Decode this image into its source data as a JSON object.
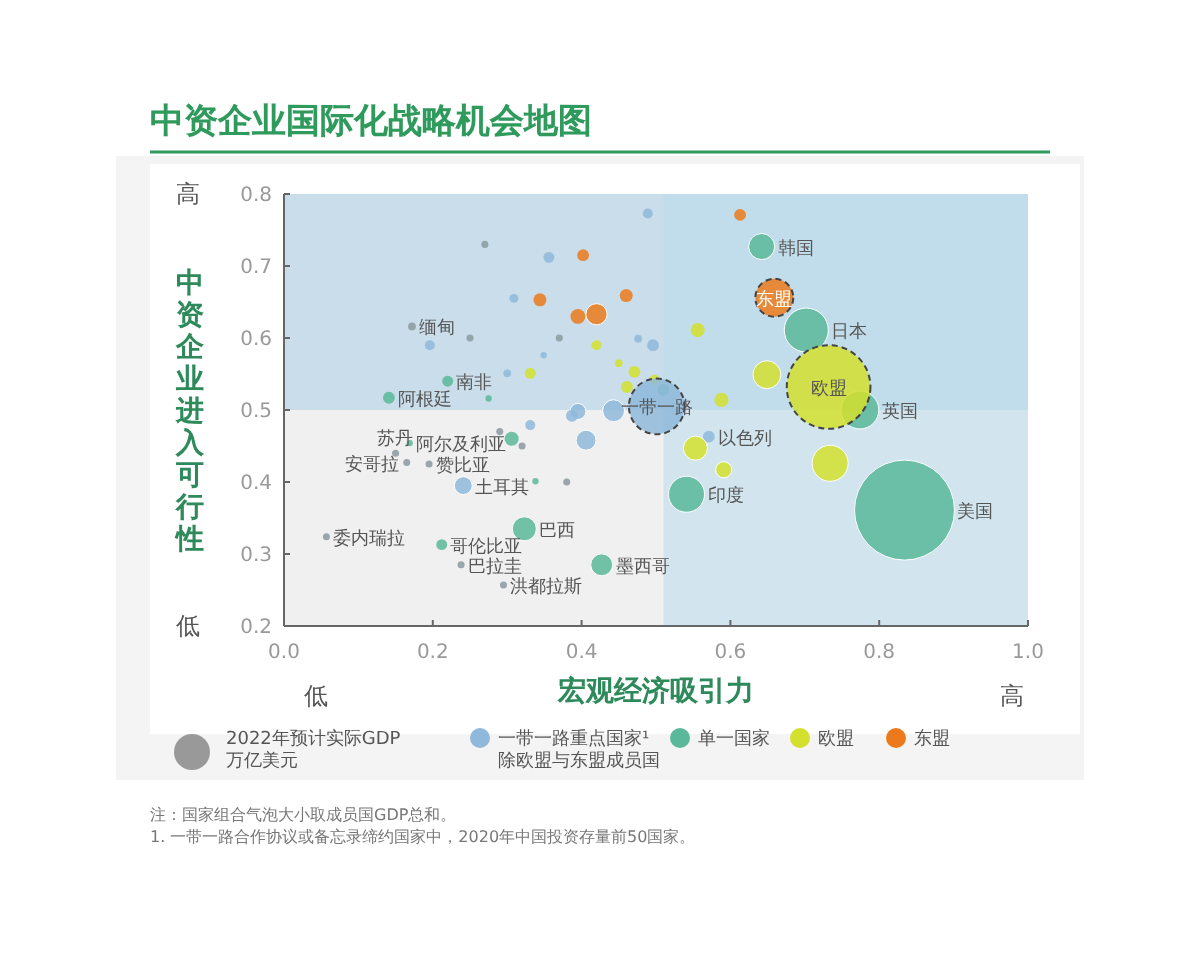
{
  "chart_data": {
    "type": "bubble",
    "title": "中资企业国际化战略机会地图",
    "xlabel": "宏观经济吸引力",
    "ylabel": "中资企业进入可行性",
    "legend_title": "2022年预计实际GDP 万亿美元",
    "legend": "bottom",
    "marker": "circle",
    "grid": false,
    "xlim": [
      0,
      1
    ],
    "xticks": [
      {
        "value": 0,
        "label": "0.0"
      },
      0.2,
      0.4,
      0.6,
      0.8,
      {
        "value": 1,
        "label": "1.0"
      }
    ],
    "ylim": [
      0.2,
      0.8
    ],
    "yticks": [
      0.2,
      0.3,
      0.4,
      0.5,
      0.6,
      0.7,
      0.8
    ],
    "bands": [
      {
        "axis": "y",
        "from": 0.5,
        "to": 0.8,
        "color": "#a9cde6"
      },
      {
        "axis": "x",
        "from": 0.51,
        "to": 1,
        "color": "#b9dcec"
      }
    ],
    "series": [
      {
        "name": "一带一路重点国家¹ 除欧盟与东盟成员国",
        "color": "#8fb8da",
        "x": [
          0.489,
          0.356,
          0.309,
          0.196,
          0.349,
          0.3,
          0.496,
          0.476,
          0.443,
          0.395,
          0.387,
          0.406,
          0.331,
          0.241,
          0.571
        ],
        "values": [
          0.773,
          0.712,
          0.655,
          0.59,
          0.576,
          0.551,
          0.59,
          0.599,
          0.499,
          0.498,
          0.492,
          0.458,
          0.479,
          0.395,
          0.463
        ],
        "sizes": [
          0.01,
          0.012,
          0.008,
          0.01,
          0.004,
          0.006,
          0.014,
          0.006,
          0.048,
          0.026,
          0.014,
          0.04,
          0.01,
          0.032,
          0.014
        ]
      },
      {
        "name": "单一国家",
        "color": "#5bb89a",
        "x": [
          0.141,
          0.22,
          0.306,
          0.275,
          0.323,
          0.212,
          0.427,
          0.541,
          0.834,
          0.774,
          0.702,
          0.642,
          0.51,
          0.338,
          0.169
        ],
        "values": [
          0.517,
          0.54,
          0.46,
          0.516,
          0.335,
          0.313,
          0.285,
          0.383,
          0.361,
          0.5,
          0.611,
          0.727,
          0.528,
          0.401,
          0.454
        ],
        "sizes": [
          0.014,
          0.012,
          0.02,
          0.004,
          0.058,
          0.012,
          0.048,
          0.13,
          1,
          0.144,
          0.194,
          0.068,
          0.014,
          0.004,
          0.004
        ]
      },
      {
        "name": "欧盟",
        "color": "#d4e02e",
        "x": [
          0.649,
          0.734,
          0.553,
          0.591,
          0.588,
          0.556,
          0.331,
          0.42,
          0.45,
          0.471,
          0.461,
          0.498
        ],
        "values": [
          0.549,
          0.426,
          0.447,
          0.417,
          0.514,
          0.611,
          0.551,
          0.59,
          0.565,
          0.553,
          0.532,
          0.542
        ],
        "sizes": [
          0.078,
          0.13,
          0.058,
          0.026,
          0.02,
          0.02,
          0.012,
          0.01,
          0.006,
          0.014,
          0.014,
          0.01
        ]
      },
      {
        "name": "东盟",
        "color": "#ec7a1c",
        "x": [
          0.613,
          0.46,
          0.402,
          0.344,
          0.395,
          0.42
        ],
        "values": [
          0.771,
          0.659,
          0.715,
          0.653,
          0.63,
          0.633
        ],
        "sizes": [
          0.014,
          0.017,
          0.014,
          0.017,
          0.022,
          0.045
        ]
      },
      {
        "color": "#8a9aa0",
        "x": [
          0.172,
          0.057,
          0.238,
          0.295,
          0.15,
          0.165,
          0.195,
          0.27,
          0.38,
          0.37,
          0.29,
          0.25,
          0.32
        ],
        "values": [
          0.616,
          0.324,
          0.285,
          0.257,
          0.44,
          0.427,
          0.425,
          0.73,
          0.4,
          0.6,
          0.47,
          0.6,
          0.45
        ],
        "sizes": [
          0.006,
          0.005,
          0.005,
          0.005,
          0.005,
          0.005,
          0.005,
          0.005,
          0.005,
          0.005,
          0.005,
          0.005,
          0.005
        ]
      },
      {
        "line_style": "dashed",
        "x": [
          0.501,
          0.732,
          0.659
        ],
        "values": [
          0.505,
          0.532,
          0.656
        ],
        "colors": [
          "#8fb8da",
          "#d4e02e",
          "#ec7a1c"
        ],
        "sizes": [
          0.31,
          0.7,
          0.144
        ]
      }
    ],
    "annotations": [
      "高",
      "低",
      "低",
      "高",
      "注：国家组合气泡大小取成员国GDP总和。",
      "1. 一带一路合作协议或备忘录缔约国家中，2020年中国投资存量前50国家。",
      {
        "text": "一带一路",
        "x": 0.501,
        "y": 0.505
      },
      {
        "text": "欧盟",
        "x": 0.732,
        "y": 0.532
      },
      {
        "text": "东盟",
        "x": 0.659,
        "y": 0.656
      },
      {
        "text": "韩国",
        "x": 0.642,
        "y": 0.727
      },
      {
        "text": "日本",
        "x": 0.702,
        "y": 0.611
      },
      {
        "text": "英国",
        "x": 0.774,
        "y": 0.5
      },
      {
        "text": "美国",
        "x": 0.834,
        "y": 0.361
      },
      {
        "text": "印度",
        "x": 0.541,
        "y": 0.383
      },
      {
        "text": "以色列",
        "x": 0.571,
        "y": 0.463
      },
      {
        "text": "墨西哥",
        "x": 0.427,
        "y": 0.285
      },
      {
        "text": "巴西",
        "x": 0.323,
        "y": 0.335
      },
      {
        "text": "哥伦比亚",
        "x": 0.212,
        "y": 0.313
      },
      {
        "text": "巴拉圭",
        "x": 0.238,
        "y": 0.285
      },
      {
        "text": "洪都拉斯",
        "x": 0.295,
        "y": 0.257
      },
      {
        "text": "委内瑞拉",
        "x": 0.057,
        "y": 0.324
      },
      {
        "text": "土耳其",
        "x": 0.241,
        "y": 0.395
      },
      {
        "text": "赞比亚",
        "x": 0.195,
        "y": 0.425
      },
      {
        "text": "安哥拉",
        "x": 0.165,
        "y": 0.427
      },
      {
        "text": "苏丹",
        "x": 0.15,
        "y": 0.44
      },
      {
        "text": "阿尔及利亚",
        "x": 0.169,
        "y": 0.454
      },
      {
        "text": "阿根廷",
        "x": 0.141,
        "y": 0.517
      },
      {
        "text": "南非",
        "x": 0.22,
        "y": 0.54
      },
      {
        "text": "缅甸",
        "x": 0.172,
        "y": 0.616
      }
    ]
  }
}
